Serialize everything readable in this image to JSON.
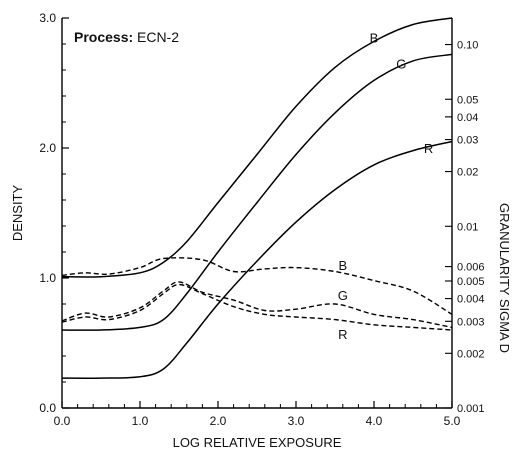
{
  "chart_data": {
    "type": "line",
    "title_label": "Process:",
    "title_value": "ECN-2",
    "xlabel": "LOG RELATIVE EXPOSURE",
    "ylabel": "DENSITY",
    "y2label": "GRANULARITY SIGMA D",
    "xlim": [
      0.0,
      5.0
    ],
    "ylim": [
      0.0,
      3.0
    ],
    "y2lim": [
      0.001,
      0.14
    ],
    "y2scale": "log",
    "x_ticks": [
      "0.0",
      "1.0",
      "2.0",
      "3.0",
      "4.0",
      "5.0"
    ],
    "y_ticks": [
      "0.0",
      "1.0",
      "2.0",
      "3.0"
    ],
    "y2_ticks": [
      {
        "value": 0.001,
        "label": "0.001"
      },
      {
        "value": 0.002,
        "label": "0.002"
      },
      {
        "value": 0.003,
        "label": "0.003"
      },
      {
        "value": 0.004,
        "label": "0.004"
      },
      {
        "value": 0.005,
        "label": "0.005"
      },
      {
        "value": 0.006,
        "label": "0.006"
      },
      {
        "value": 0.01,
        "label": "0.01"
      },
      {
        "value": 0.02,
        "label": "0.02"
      },
      {
        "value": 0.03,
        "label": "0.03"
      },
      {
        "value": 0.04,
        "label": "0.04"
      },
      {
        "value": 0.05,
        "label": "0.05"
      },
      {
        "value": 0.1,
        "label": "0.10"
      }
    ],
    "grid": false,
    "density_series": [
      {
        "name": "B",
        "label_at": [
          4.0,
          2.85
        ],
        "x": [
          0.0,
          0.5,
          1.0,
          1.3,
          1.6,
          2.0,
          2.5,
          3.0,
          3.5,
          4.0,
          4.5,
          5.0
        ],
        "y": [
          1.01,
          1.01,
          1.04,
          1.12,
          1.28,
          1.58,
          1.95,
          2.32,
          2.62,
          2.82,
          2.95,
          3.0
        ]
      },
      {
        "name": "G",
        "label_at": [
          4.35,
          2.65
        ],
        "x": [
          0.0,
          0.5,
          1.0,
          1.3,
          1.6,
          2.0,
          2.5,
          3.0,
          3.5,
          4.0,
          4.5,
          5.0
        ],
        "y": [
          0.6,
          0.6,
          0.62,
          0.68,
          0.88,
          1.2,
          1.58,
          1.95,
          2.27,
          2.52,
          2.67,
          2.72
        ]
      },
      {
        "name": "R",
        "label_at": [
          4.7,
          2.0
        ],
        "x": [
          0.0,
          0.5,
          1.0,
          1.3,
          1.6,
          2.0,
          2.5,
          3.0,
          3.5,
          4.0,
          4.5,
          5.0
        ],
        "y": [
          0.23,
          0.23,
          0.24,
          0.3,
          0.5,
          0.8,
          1.13,
          1.43,
          1.68,
          1.87,
          1.98,
          2.05
        ]
      }
    ],
    "granularity_series": [
      {
        "name": "B",
        "label_at": [
          3.6,
          1.1
        ],
        "x": [
          0.0,
          0.3,
          0.6,
          1.0,
          1.3,
          1.8,
          2.2,
          2.6,
          3.0,
          3.5,
          4.0,
          4.5,
          5.0
        ],
        "y": [
          1.02,
          1.04,
          1.03,
          1.08,
          1.15,
          1.14,
          1.05,
          1.07,
          1.08,
          1.05,
          0.98,
          0.9,
          0.72
        ]
      },
      {
        "name": "G",
        "label_at": [
          3.6,
          0.87
        ],
        "x": [
          0.0,
          0.3,
          0.6,
          1.0,
          1.3,
          1.5,
          1.8,
          2.2,
          2.6,
          3.0,
          3.5,
          4.0,
          4.5,
          5.0
        ],
        "y": [
          0.67,
          0.73,
          0.7,
          0.77,
          0.9,
          0.97,
          0.89,
          0.83,
          0.75,
          0.76,
          0.8,
          0.72,
          0.68,
          0.62
        ]
      },
      {
        "name": "R",
        "label_at": [
          3.6,
          0.57
        ],
        "x": [
          0.0,
          0.3,
          0.6,
          1.0,
          1.3,
          1.5,
          1.8,
          2.2,
          2.6,
          3.0,
          3.5,
          4.0,
          4.5,
          5.0
        ],
        "y": [
          0.66,
          0.7,
          0.68,
          0.75,
          0.88,
          0.95,
          0.88,
          0.78,
          0.72,
          0.7,
          0.68,
          0.64,
          0.62,
          0.6
        ]
      }
    ]
  }
}
